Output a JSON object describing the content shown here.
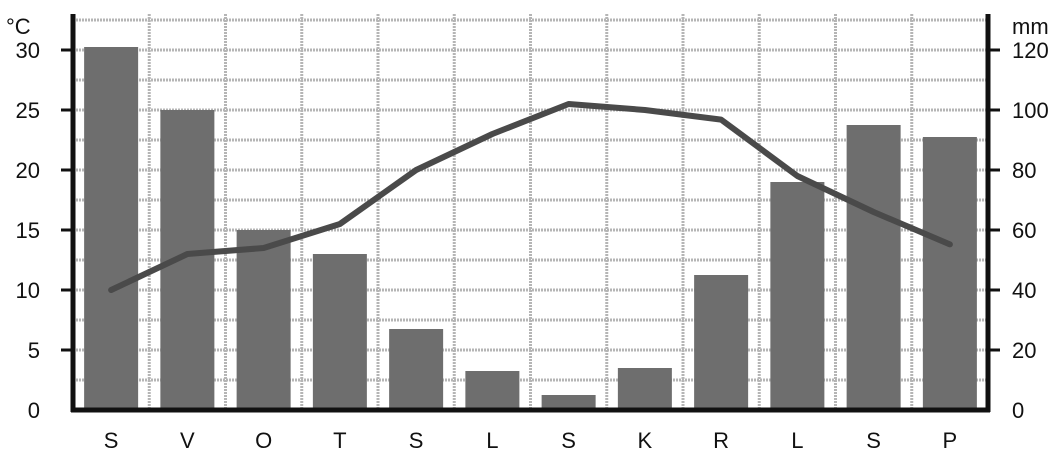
{
  "chart_data": {
    "type": "bar",
    "categories": [
      "S",
      "V",
      "O",
      "T",
      "S",
      "L",
      "S",
      "K",
      "R",
      "L",
      "S",
      "P"
    ],
    "series": [
      {
        "kind": "bar",
        "axis": "right",
        "values": [
          121,
          100,
          60,
          52,
          27,
          13,
          5,
          14,
          45,
          76,
          95,
          91
        ]
      },
      {
        "kind": "line",
        "axis": "left",
        "values": [
          10,
          13,
          13.5,
          15.5,
          20,
          23,
          25.5,
          25,
          24.2,
          19.5,
          16.5,
          13.8
        ]
      }
    ],
    "y_left": {
      "unit": "°C",
      "ticks": [
        "0",
        "5",
        "10",
        "15",
        "20",
        "25",
        "30"
      ],
      "ylim": [
        0,
        33
      ]
    },
    "y_right": {
      "unit": "mm",
      "ticks": [
        "0",
        "20",
        "40",
        "60",
        "80",
        "100",
        "120"
      ],
      "ylim": [
        0,
        132
      ]
    },
    "grid": true,
    "colors": {
      "bars": "#6e6e6e",
      "line": "#4a4a4a",
      "axes": "#111111",
      "grid": "#b5b5b5"
    }
  }
}
